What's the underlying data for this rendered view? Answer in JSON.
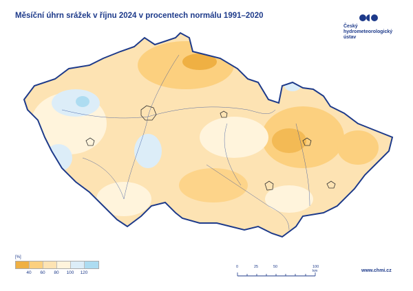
{
  "title": "Měsíční úhrn srážek v říjnu 2024 v procentech normálu 1991–2020",
  "logo": {
    "lines": [
      "Český",
      "hydrometeorologický",
      "ústav"
    ],
    "color": "#1d3a8a"
  },
  "legend": {
    "unit": "[%]",
    "labels": [
      "40",
      "60",
      "80",
      "100",
      "120"
    ],
    "colors": [
      "#efb043",
      "#fcd07f",
      "#fde3b3",
      "#fff4dc",
      "#dcedf8",
      "#addcf1"
    ]
  },
  "scale_bar": {
    "labels": [
      "0",
      "25",
      "50",
      "100 km"
    ]
  },
  "url": "www.chmi.cz",
  "colors": {
    "border": "#1d3a8a",
    "rivers": "#2a4a9a",
    "accent": "#1d3a8a"
  }
}
